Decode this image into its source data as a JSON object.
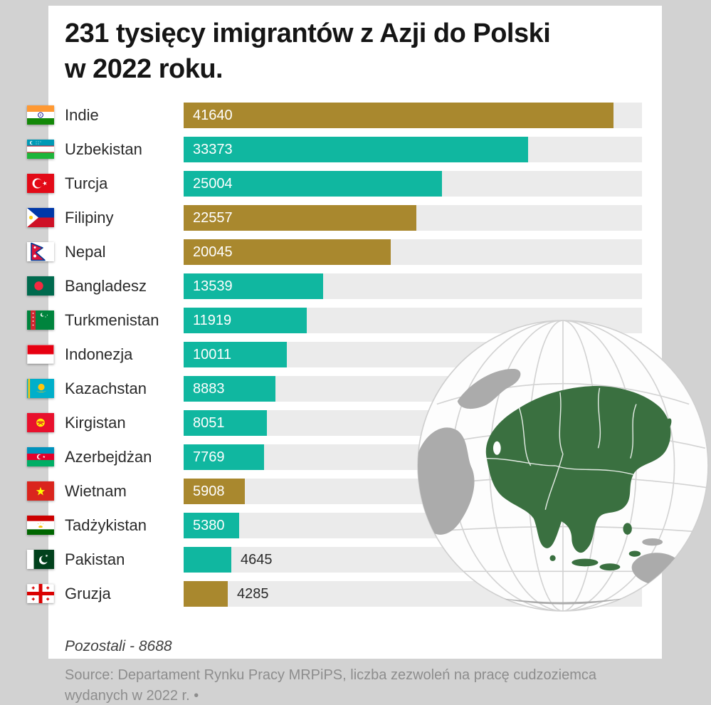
{
  "page": {
    "title_line1": "231 tysięcy imigrantów z Azji do Polski",
    "title_line2": "w 2022 roku.",
    "footer_remaining": "Pozostali - 8688",
    "source_line1": "Source: Departament Rynku Pracy MRPiPS, liczba zezwoleń na pracę cudzoziemca",
    "source_line2": "wydanych w 2022 r. •"
  },
  "colors": {
    "teal": "#10b7a0",
    "gold": "#a9882e",
    "track": "#ebebeb",
    "background": "#d2d2d2",
    "card": "#ffffff",
    "asia_green": "#3a7040"
  },
  "chart_data": {
    "type": "bar",
    "orientation": "horizontal",
    "title": "231 tysięcy imigrantów z Azji do Polski w 2022 roku.",
    "categories": [
      "Indie",
      "Uzbekistan",
      "Turcja",
      "Filipiny",
      "Nepal",
      "Bangladesz",
      "Turkmenistan",
      "Indonezja",
      "Kazachstan",
      "Kirgistan",
      "Azerbejdżan",
      "Wietnam",
      "Tadżykistan",
      "Pakistan",
      "Gruzja"
    ],
    "values": [
      41640,
      33373,
      25004,
      22557,
      20045,
      13539,
      11919,
      10011,
      8883,
      8051,
      7769,
      5908,
      5380,
      4645,
      4285
    ],
    "bar_colors": [
      "gold",
      "teal",
      "teal",
      "gold",
      "gold",
      "teal",
      "teal",
      "teal",
      "teal",
      "teal",
      "teal",
      "gold",
      "teal",
      "teal",
      "gold"
    ],
    "flags": [
      "india",
      "uzbekistan",
      "turkey",
      "philippines",
      "nepal",
      "bangladesh",
      "turkmenistan",
      "indonesia",
      "kazakhstan",
      "kyrgyzstan",
      "azerbaijan",
      "vietnam",
      "tajikistan",
      "pakistan",
      "georgia"
    ],
    "max_value": 41640,
    "value_label_outside_threshold": 5000,
    "other": {
      "label": "Pozostali",
      "value": 8688
    },
    "xlabel": "",
    "ylabel": "",
    "grid": false,
    "legend": false
  }
}
